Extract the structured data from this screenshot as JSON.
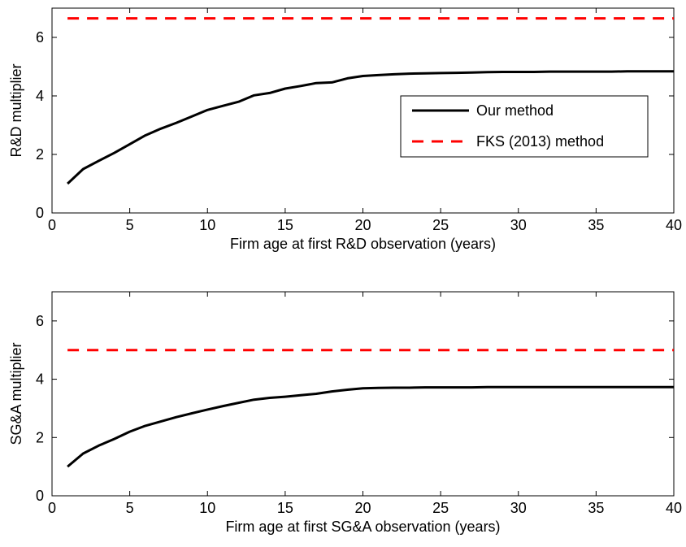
{
  "chart_data": [
    {
      "type": "line",
      "xlabel": "Firm age at first R&D observation (years)",
      "ylabel": "R&D multiplier",
      "xlim": [
        0,
        40
      ],
      "ylim": [
        0,
        7
      ],
      "xticks": [
        0,
        5,
        10,
        15,
        20,
        25,
        30,
        35,
        40
      ],
      "yticks": [
        0,
        2,
        4,
        6
      ],
      "grid": false,
      "legend": {
        "position": "right",
        "entries": [
          "Our method",
          "FKS (2013) method"
        ]
      },
      "series": [
        {
          "name": "Our method",
          "color": "#000000",
          "style": "solid",
          "x": [
            1,
            2,
            3,
            4,
            5,
            6,
            7,
            8,
            9,
            10,
            11,
            12,
            13,
            14,
            15,
            16,
            17,
            18,
            19,
            20,
            21,
            22,
            23,
            24,
            25,
            26,
            27,
            28,
            29,
            30,
            31,
            32,
            33,
            34,
            35,
            36,
            37,
            38,
            39,
            40
          ],
          "y": [
            1.0,
            1.5,
            1.78,
            2.05,
            2.35,
            2.65,
            2.88,
            3.08,
            3.3,
            3.52,
            3.66,
            3.8,
            4.02,
            4.1,
            4.25,
            4.34,
            4.44,
            4.46,
            4.6,
            4.68,
            4.71,
            4.74,
            4.76,
            4.77,
            4.78,
            4.79,
            4.8,
            4.81,
            4.82,
            4.82,
            4.82,
            4.83,
            4.83,
            4.83,
            4.83,
            4.83,
            4.84,
            4.84,
            4.84,
            4.84
          ]
        },
        {
          "name": "FKS (2013) method",
          "color": "#ff0000",
          "style": "dashed",
          "x": [
            1,
            40
          ],
          "y": [
            6.65,
            6.65
          ]
        }
      ]
    },
    {
      "type": "line",
      "xlabel": "Firm age at first SG&A observation (years)",
      "ylabel": "SG&A multiplier",
      "xlim": [
        0,
        40
      ],
      "ylim": [
        0,
        7
      ],
      "xticks": [
        0,
        5,
        10,
        15,
        20,
        25,
        30,
        35,
        40
      ],
      "yticks": [
        0,
        2,
        4,
        6
      ],
      "grid": false,
      "series": [
        {
          "name": "Our method",
          "color": "#000000",
          "style": "solid",
          "x": [
            1,
            2,
            3,
            4,
            5,
            6,
            7,
            8,
            9,
            10,
            11,
            12,
            13,
            14,
            15,
            16,
            17,
            18,
            19,
            20,
            21,
            22,
            23,
            24,
            25,
            26,
            27,
            28,
            29,
            30,
            31,
            32,
            33,
            34,
            35,
            36,
            37,
            38,
            39,
            40
          ],
          "y": [
            1.0,
            1.45,
            1.72,
            1.95,
            2.2,
            2.4,
            2.55,
            2.7,
            2.83,
            2.96,
            3.08,
            3.19,
            3.3,
            3.36,
            3.4,
            3.45,
            3.5,
            3.58,
            3.64,
            3.69,
            3.7,
            3.71,
            3.71,
            3.72,
            3.72,
            3.72,
            3.72,
            3.73,
            3.73,
            3.73,
            3.73,
            3.73,
            3.73,
            3.73,
            3.73,
            3.73,
            3.73,
            3.73,
            3.73,
            3.73
          ]
        },
        {
          "name": "FKS (2013) method",
          "color": "#ff0000",
          "style": "dashed",
          "x": [
            1,
            40
          ],
          "y": [
            5.0,
            5.0
          ]
        }
      ]
    }
  ]
}
